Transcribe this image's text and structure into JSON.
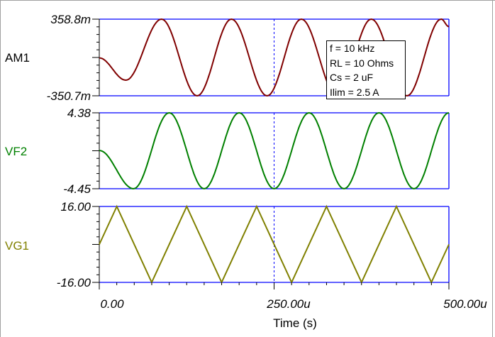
{
  "chart_data": [
    {
      "type": "line",
      "name": "AM1",
      "color": "#800000",
      "x": [
        0,
        38,
        89,
        140,
        189,
        240,
        289,
        340,
        389,
        440,
        489,
        500
      ],
      "values": [
        0,
        -206,
        358.8,
        -350.7,
        358.8,
        -350.7,
        358.8,
        -350.7,
        358.8,
        -350.7,
        358.8,
        290
      ],
      "yunit_suffix": "m",
      "ylim": [
        -350.7,
        358.8
      ],
      "ytick_labels": [
        "358.8m",
        "-350.7m"
      ]
    },
    {
      "type": "line",
      "name": "VF2",
      "color": "#008000",
      "x": [
        0,
        49,
        100,
        150,
        200,
        250,
        300,
        350,
        400,
        450,
        500
      ],
      "values": [
        0,
        -4.45,
        4.38,
        -4.45,
        4.38,
        -4.45,
        4.38,
        -4.45,
        4.38,
        -4.45,
        4.38
      ],
      "ylim": [
        -4.45,
        4.38
      ],
      "ytick_labels": [
        "4.38",
        "-4.45"
      ]
    },
    {
      "type": "line",
      "name": "VG1",
      "color": "#808000",
      "x": [
        0,
        25,
        75,
        125,
        175,
        225,
        275,
        325,
        375,
        425,
        475,
        500
      ],
      "values": [
        0,
        16,
        -16,
        16,
        -16,
        16,
        -16,
        16,
        -16,
        16,
        -16,
        0
      ],
      "ylim": [
        -16,
        16
      ],
      "ytick_labels": [
        "16.00",
        "-16.00"
      ]
    }
  ],
  "x_axis": {
    "title": "Time (s)",
    "range": [
      0,
      500
    ],
    "unit_suffix": "u",
    "tick_labels": [
      "0.00",
      "250.00u",
      "500.00u"
    ]
  },
  "cursor": {
    "x": 250,
    "color": "#0000ff"
  },
  "frame_color": "#0000ff",
  "annotation": [
    "f = 10 kHz",
    "RL = 10 Ohms",
    "Cs = 2 uF",
    "Ilim = 2.5 A"
  ]
}
